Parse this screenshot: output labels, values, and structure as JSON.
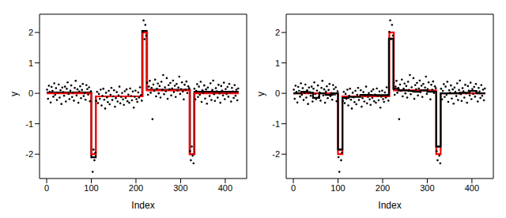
{
  "chart_data": [
    {
      "type": "scatter",
      "xlabel": "Index",
      "ylabel": "y",
      "xlim": [
        -16,
        448
      ],
      "xticks": [
        0,
        100,
        200,
        300,
        400
      ],
      "ylim": [
        -2.8,
        2.6
      ],
      "yticks": [
        -2,
        -1,
        0,
        1,
        2
      ],
      "series": [
        {
          "type": "scatter",
          "color": "#000000",
          "marker": "dot",
          "x": [
            1,
            3,
            5,
            7,
            9,
            11,
            13,
            15,
            17,
            19,
            21,
            23,
            25,
            27,
            29,
            31,
            33,
            35,
            37,
            39,
            41,
            43,
            45,
            47,
            49,
            51,
            53,
            55,
            57,
            59,
            61,
            63,
            65,
            67,
            69,
            71,
            73,
            75,
            77,
            79,
            81,
            83,
            85,
            87,
            89,
            91,
            93,
            95,
            97,
            99,
            101,
            103,
            105,
            107,
            109,
            111,
            113,
            115,
            117,
            119,
            121,
            123,
            125,
            127,
            129,
            131,
            133,
            135,
            137,
            139,
            141,
            143,
            145,
            147,
            149,
            151,
            153,
            155,
            157,
            159,
            161,
            163,
            165,
            167,
            169,
            171,
            173,
            175,
            177,
            179,
            181,
            183,
            185,
            187,
            189,
            191,
            193,
            195,
            197,
            199,
            201,
            203,
            205,
            207,
            209,
            211,
            213,
            215,
            217,
            219,
            221,
            223,
            225,
            227,
            229,
            231,
            233,
            235,
            237,
            239,
            241,
            243,
            245,
            247,
            249,
            251,
            253,
            255,
            257,
            259,
            261,
            263,
            265,
            267,
            269,
            271,
            273,
            275,
            277,
            279,
            281,
            283,
            285,
            287,
            289,
            291,
            293,
            295,
            297,
            299,
            301,
            303,
            305,
            307,
            309,
            311,
            313,
            315,
            317,
            319,
            321,
            323,
            325,
            327,
            329,
            331,
            333,
            335,
            337,
            339,
            341,
            343,
            345,
            347,
            349,
            351,
            353,
            355,
            357,
            359,
            361,
            363,
            365,
            367,
            369,
            371,
            373,
            375,
            377,
            379,
            381,
            383,
            385,
            387,
            389,
            391,
            393,
            395,
            397,
            399,
            401,
            403,
            405,
            407,
            409,
            411,
            413,
            415,
            417,
            419,
            421,
            423,
            425,
            427,
            429
          ],
          "values": [
            0.12,
            -0.18,
            0.25,
            0.05,
            -0.3,
            0.21,
            0.08,
            -0.11,
            0.33,
            -0.05,
            0.17,
            -0.22,
            0.02,
            0.29,
            -0.14,
            0.1,
            -0.35,
            0.19,
            0.04,
            -0.08,
            0.22,
            -0.27,
            0.15,
            0.36,
            -0.02,
            -0.19,
            0.09,
            0.26,
            -0.12,
            0.03,
            -0.24,
            0.18,
            0.41,
            -0.07,
            0.13,
            -0.31,
            0.06,
            0.23,
            -0.16,
            0.11,
            0.31,
            -0.09,
            0.01,
            -0.21,
            0.27,
            0.14,
            -0.04,
            0.2,
            -0.26,
            0.07,
            -2.1,
            -2.58,
            -1.85,
            -2.2,
            -1.95,
            -0.25,
            0.05,
            -0.32,
            -0.02,
            -0.18,
            0.12,
            -0.4,
            -0.08,
            0.15,
            -0.21,
            -0.5,
            0.02,
            -0.13,
            -0.29,
            0.08,
            -0.36,
            -0.05,
            0.18,
            -0.22,
            -0.1,
            0.1,
            -0.44,
            -0.16,
            0.04,
            -0.27,
            -0.07,
            0.22,
            -0.33,
            -0.12,
            0.01,
            -0.2,
            -0.38,
            0.07,
            -0.15,
            0.13,
            -0.26,
            -0.04,
            -0.31,
            0.16,
            -0.09,
            -0.23,
            0.06,
            -0.47,
            -0.11,
            0.09,
            -0.19,
            -0.28,
            0.03,
            -0.14,
            0.2,
            -0.06,
            -0.24,
            2.02,
            2.4,
            1.78,
            2.25,
            1.9,
            0.35,
            -0.05,
            0.22,
            0.41,
            0.02,
            0.18,
            -0.85,
            0.29,
            0.08,
            0.45,
            -0.1,
            0.15,
            0.32,
            0.0,
            0.24,
            -0.14,
            0.38,
            0.11,
            0.6,
            -0.03,
            0.2,
            0.07,
            0.5,
            -0.18,
            0.27,
            0.13,
            0.34,
            -0.07,
            0.16,
            0.42,
            0.04,
            0.25,
            -0.12,
            0.31,
            0.09,
            0.19,
            0.55,
            -0.02,
            0.14,
            0.36,
            0.06,
            -0.2,
            0.28,
            0.12,
            0.39,
            0.01,
            0.23,
            0.17,
            -1.9,
            -2.2,
            -1.75,
            -2.05,
            -2.3,
            0.15,
            -0.2,
            0.08,
            0.3,
            -0.12,
            0.22,
            -0.05,
            0.38,
            -0.28,
            0.1,
            0.02,
            0.26,
            -0.17,
            0.13,
            -0.34,
            0.19,
            0.05,
            -0.09,
            0.33,
            -0.22,
            0.11,
            0.42,
            -0.03,
            -0.25,
            0.17,
            0.07,
            -0.14,
            0.28,
            0.0,
            -0.31,
            0.24,
            0.09,
            -0.07,
            0.35,
            -0.19,
            0.14,
            -0.02,
            0.21,
            -0.11,
            0.31,
            0.04,
            -0.27,
            0.18,
            0.06,
            -0.15,
            0.27,
            -0.08,
            0.12,
            -0.23,
            0.16
          ]
        },
        {
          "type": "line",
          "line_style": "step",
          "color": "#000000",
          "x": [
            0,
            100,
            110,
            214,
            224,
            321,
            331,
            430
          ],
          "values": [
            0.03,
            -2.1,
            -0.1,
            2.05,
            0.12,
            -2.0,
            0.05,
            0.05
          ]
        },
        {
          "type": "line",
          "line_style": "step",
          "color": "#ff0000",
          "x": [
            0,
            100,
            110,
            215,
            225,
            320,
            330,
            430
          ],
          "values": [
            0,
            -2,
            -0.1,
            2,
            0.1,
            -2,
            0,
            0
          ]
        }
      ]
    },
    {
      "type": "scatter",
      "xlabel": "Index",
      "ylabel": "y",
      "xlim": [
        -16,
        448
      ],
      "xticks": [
        0,
        100,
        200,
        300,
        400
      ],
      "ylim": [
        -2.8,
        2.6
      ],
      "yticks": [
        -2,
        -1,
        0,
        1,
        2
      ],
      "series": [
        {
          "type": "scatter",
          "color": "#000000",
          "marker": "dot",
          "x": [
            1,
            3,
            5,
            7,
            9,
            11,
            13,
            15,
            17,
            19,
            21,
            23,
            25,
            27,
            29,
            31,
            33,
            35,
            37,
            39,
            41,
            43,
            45,
            47,
            49,
            51,
            53,
            55,
            57,
            59,
            61,
            63,
            65,
            67,
            69,
            71,
            73,
            75,
            77,
            79,
            81,
            83,
            85,
            87,
            89,
            91,
            93,
            95,
            97,
            99,
            101,
            103,
            105,
            107,
            109,
            111,
            113,
            115,
            117,
            119,
            121,
            123,
            125,
            127,
            129,
            131,
            133,
            135,
            137,
            139,
            141,
            143,
            145,
            147,
            149,
            151,
            153,
            155,
            157,
            159,
            161,
            163,
            165,
            167,
            169,
            171,
            173,
            175,
            177,
            179,
            181,
            183,
            185,
            187,
            189,
            191,
            193,
            195,
            197,
            199,
            201,
            203,
            205,
            207,
            209,
            211,
            213,
            215,
            217,
            219,
            221,
            223,
            225,
            227,
            229,
            231,
            233,
            235,
            237,
            239,
            241,
            243,
            245,
            247,
            249,
            251,
            253,
            255,
            257,
            259,
            261,
            263,
            265,
            267,
            269,
            271,
            273,
            275,
            277,
            279,
            281,
            283,
            285,
            287,
            289,
            291,
            293,
            295,
            297,
            299,
            301,
            303,
            305,
            307,
            309,
            311,
            313,
            315,
            317,
            319,
            321,
            323,
            325,
            327,
            329,
            331,
            333,
            335,
            337,
            339,
            341,
            343,
            345,
            347,
            349,
            351,
            353,
            355,
            357,
            359,
            361,
            363,
            365,
            367,
            369,
            371,
            373,
            375,
            377,
            379,
            381,
            383,
            385,
            387,
            389,
            391,
            393,
            395,
            397,
            399,
            401,
            403,
            405,
            407,
            409,
            411,
            413,
            415,
            417,
            419,
            421,
            423,
            425,
            427,
            429
          ],
          "values": [
            0.12,
            -0.18,
            0.25,
            0.05,
            -0.3,
            0.21,
            0.08,
            -0.11,
            0.33,
            -0.05,
            0.17,
            -0.22,
            0.02,
            0.29,
            -0.14,
            0.1,
            -0.35,
            0.19,
            0.04,
            -0.08,
            0.22,
            -0.27,
            0.15,
            0.36,
            -0.02,
            -0.19,
            0.09,
            0.26,
            -0.12,
            0.03,
            -0.24,
            0.18,
            0.41,
            -0.07,
            0.13,
            -0.31,
            0.06,
            0.23,
            -0.16,
            0.11,
            0.31,
            -0.09,
            0.01,
            -0.21,
            0.27,
            0.14,
            -0.04,
            0.2,
            -0.26,
            0.07,
            -2.1,
            -2.58,
            -1.85,
            -2.2,
            -1.95,
            -0.25,
            0.05,
            -0.32,
            -0.02,
            -0.18,
            0.12,
            -0.4,
            -0.08,
            0.15,
            -0.21,
            -0.5,
            0.02,
            -0.13,
            -0.29,
            0.08,
            -0.36,
            -0.05,
            0.18,
            -0.22,
            -0.1,
            0.1,
            -0.44,
            -0.16,
            0.04,
            -0.27,
            -0.07,
            0.22,
            -0.33,
            -0.12,
            0.01,
            -0.2,
            -0.38,
            0.07,
            -0.15,
            0.13,
            -0.26,
            -0.04,
            -0.31,
            0.16,
            -0.09,
            -0.23,
            0.06,
            -0.47,
            -0.11,
            0.09,
            -0.19,
            -0.28,
            0.03,
            -0.14,
            0.2,
            -0.06,
            -0.24,
            2.02,
            2.4,
            1.78,
            2.25,
            1.9,
            0.35,
            -0.05,
            0.22,
            0.41,
            0.02,
            0.18,
            -0.85,
            0.29,
            0.08,
            0.45,
            -0.1,
            0.15,
            0.32,
            0.0,
            0.24,
            -0.14,
            0.38,
            0.11,
            0.6,
            -0.03,
            0.2,
            0.07,
            0.5,
            -0.18,
            0.27,
            0.13,
            0.34,
            -0.07,
            0.16,
            0.42,
            0.04,
            0.25,
            -0.12,
            0.31,
            0.09,
            0.19,
            0.55,
            -0.02,
            0.14,
            0.36,
            0.06,
            -0.2,
            0.28,
            0.12,
            0.39,
            0.01,
            0.23,
            0.17,
            -1.9,
            -2.2,
            -1.75,
            -2.05,
            -2.3,
            0.15,
            -0.2,
            0.08,
            0.3,
            -0.12,
            0.22,
            -0.05,
            0.38,
            -0.28,
            0.1,
            0.02,
            0.26,
            -0.17,
            0.13,
            -0.34,
            0.19,
            0.05,
            -0.09,
            0.33,
            -0.22,
            0.11,
            0.42,
            -0.03,
            -0.25,
            0.17,
            0.07,
            -0.14,
            0.28,
            0.0,
            -0.31,
            0.24,
            0.09,
            -0.07,
            0.35,
            -0.19,
            0.14,
            -0.02,
            0.21,
            -0.11,
            0.31,
            0.04,
            -0.27,
            0.18,
            0.06,
            -0.15,
            0.27,
            -0.08,
            0.12,
            -0.23,
            0.16
          ]
        },
        {
          "type": "line",
          "line_style": "step",
          "color": "#ff0000",
          "x": [
            0,
            100,
            110,
            215,
            225,
            320,
            330,
            430
          ],
          "values": [
            0,
            -2,
            -0.1,
            2,
            0.1,
            -2,
            0,
            0
          ]
        },
        {
          "type": "line",
          "line_style": "step",
          "color": "#000000",
          "x": [
            0,
            18,
            32,
            44,
            58,
            72,
            88,
            100,
            110,
            124,
            150,
            175,
            214,
            224,
            236,
            258,
            270,
            284,
            300,
            320,
            330,
            372,
            395,
            410,
            430
          ],
          "values": [
            0.0,
            0.05,
            0.02,
            -0.15,
            0.0,
            -0.05,
            0.0,
            -1.85,
            -0.15,
            -0.12,
            -0.05,
            -0.06,
            1.8,
            0.15,
            0.1,
            0.08,
            0.05,
            0.1,
            0.05,
            -1.75,
            0.0,
            0.02,
            0.08,
            0.0,
            0.0
          ]
        }
      ]
    }
  ]
}
